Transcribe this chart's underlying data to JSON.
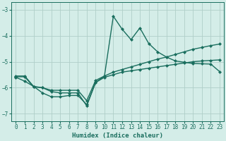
{
  "xlabel": "Humidex (Indice chaleur)",
  "bg_color": "#d4ede8",
  "grid_color": "#b0cfc8",
  "line_color": "#1a6e5e",
  "xlim": [
    -0.5,
    23.5
  ],
  "ylim": [
    -7.3,
    -2.7
  ],
  "yticks": [
    -7,
    -6,
    -5,
    -4,
    -3
  ],
  "xticks": [
    0,
    1,
    2,
    3,
    4,
    5,
    6,
    7,
    8,
    9,
    10,
    11,
    12,
    13,
    14,
    15,
    16,
    17,
    18,
    19,
    20,
    21,
    22,
    23
  ],
  "series1_x": [
    0,
    1,
    2,
    3,
    4,
    5,
    6,
    7,
    8,
    9,
    10,
    11,
    12,
    13,
    14,
    15,
    16,
    17,
    18,
    19,
    20,
    21,
    22,
    23
  ],
  "series1_y": [
    -5.6,
    -5.75,
    -5.95,
    -6.0,
    -6.15,
    -6.2,
    -6.2,
    -6.2,
    -6.7,
    -5.8,
    -5.6,
    -5.5,
    -5.4,
    -5.35,
    -5.3,
    -5.25,
    -5.2,
    -5.15,
    -5.1,
    -5.05,
    -5.0,
    -4.97,
    -4.95,
    -4.93
  ],
  "series2_x": [
    0,
    1,
    2,
    3,
    4,
    5,
    6,
    7,
    8,
    9,
    10,
    11,
    12,
    13,
    14,
    15,
    16,
    17,
    18,
    19,
    20,
    21,
    22,
    23
  ],
  "series2_y": [
    -5.55,
    -5.55,
    -5.95,
    -6.2,
    -6.35,
    -6.35,
    -6.3,
    -6.3,
    -6.65,
    -5.8,
    -5.55,
    -3.25,
    -3.75,
    -4.15,
    -3.7,
    -4.3,
    -4.62,
    -4.82,
    -4.97,
    -5.02,
    -5.07,
    -5.08,
    -5.09,
    -5.38
  ],
  "series3_x": [
    0,
    1,
    2,
    3,
    4,
    5,
    6,
    7,
    8,
    9,
    10,
    11,
    12,
    13,
    14,
    15,
    16,
    17,
    18,
    19,
    20,
    21,
    22,
    23
  ],
  "series3_y": [
    -5.58,
    -5.58,
    -5.97,
    -6.0,
    -6.1,
    -6.1,
    -6.1,
    -6.1,
    -6.5,
    -5.72,
    -5.55,
    -5.4,
    -5.3,
    -5.2,
    -5.1,
    -5.0,
    -4.9,
    -4.82,
    -4.72,
    -4.62,
    -4.52,
    -4.45,
    -4.38,
    -4.32
  ],
  "marker": "D",
  "markersize": 2.0,
  "linewidth": 1.0
}
